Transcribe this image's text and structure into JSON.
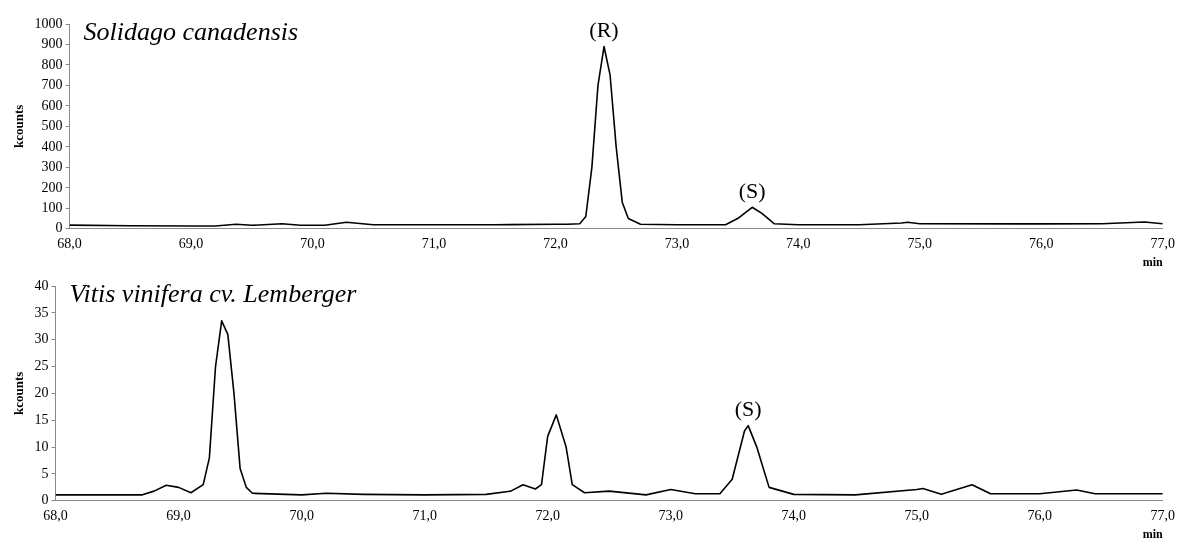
{
  "chart_data": [
    {
      "type": "line",
      "title": "Solidago canadensis",
      "xlabel": "min",
      "ylabel": "kcounts",
      "marker": "none",
      "grid": false,
      "legend": false,
      "xlim": [
        68,
        77
      ],
      "xticks": [
        {
          "value": 68,
          "label": "68,0"
        },
        {
          "value": 69,
          "label": "69,0"
        },
        {
          "value": 70,
          "label": "70,0"
        },
        {
          "value": 71,
          "label": "71,0"
        },
        {
          "value": 72,
          "label": "72,0"
        },
        {
          "value": 73,
          "label": "73,0"
        },
        {
          "value": 74,
          "label": "74,0"
        },
        {
          "value": 75,
          "label": "75,0"
        },
        {
          "value": 76,
          "label": "76,0"
        },
        {
          "value": 77,
          "label": "77,0"
        }
      ],
      "ylim": [
        0,
        1000
      ],
      "yticks": [
        0,
        100,
        200,
        300,
        400,
        500,
        600,
        700,
        800,
        900,
        1000
      ],
      "annotations": [
        {
          "text": "(R)",
          "x": 72.4,
          "y": 890
        },
        {
          "text": "(S)",
          "x": 73.62,
          "y": 105
        }
      ],
      "series": [
        {
          "color": "#000000",
          "x": [
            68,
            68.5,
            69,
            69.2,
            69.37,
            69.5,
            69.75,
            69.9,
            70.1,
            70.28,
            70.5,
            71,
            71.5,
            72,
            72.1,
            72.2,
            72.25,
            72.3,
            72.35,
            72.4,
            72.45,
            72.5,
            72.55,
            72.6,
            72.7,
            73,
            73.4,
            73.5,
            73.62,
            73.7,
            73.8,
            74,
            74.5,
            74.85,
            74.9,
            75,
            76,
            76.5,
            76.85,
            77
          ],
          "values": [
            18,
            15,
            14,
            14,
            22,
            17,
            25,
            17,
            17,
            32,
            20,
            20,
            20,
            22,
            22,
            25,
            60,
            300,
            700,
            890,
            750,
            400,
            130,
            50,
            22,
            20,
            20,
            50,
            105,
            75,
            25,
            20,
            20,
            28,
            32,
            25,
            24,
            25,
            33,
            25
          ]
        }
      ]
    },
    {
      "type": "line",
      "title": "Vitis vinifera cv. Lemberger",
      "xlabel": "min",
      "ylabel": "kcounts",
      "marker": "none",
      "grid": false,
      "legend": false,
      "xlim": [
        68,
        77
      ],
      "xticks": [
        {
          "value": 68,
          "label": "68,0"
        },
        {
          "value": 69,
          "label": "69,0"
        },
        {
          "value": 70,
          "label": "70,0"
        },
        {
          "value": 71,
          "label": "71,0"
        },
        {
          "value": 72,
          "label": "72,0"
        },
        {
          "value": 73,
          "label": "73,0"
        },
        {
          "value": 74,
          "label": "74,0"
        },
        {
          "value": 75,
          "label": "75,0"
        },
        {
          "value": 76,
          "label": "76,0"
        },
        {
          "value": 77,
          "label": "77,0"
        }
      ],
      "ylim": [
        0,
        40
      ],
      "yticks": [
        0,
        5,
        10,
        15,
        20,
        25,
        30,
        35,
        40
      ],
      "annotations": [
        {
          "text": "(S)",
          "x": 73.63,
          "y": 14
        }
      ],
      "series": [
        {
          "color": "#000000",
          "x": [
            68,
            68.5,
            68.7,
            68.8,
            68.9,
            69.0,
            69.1,
            69.2,
            69.25,
            69.3,
            69.35,
            69.4,
            69.45,
            69.5,
            69.55,
            69.6,
            70,
            70.2,
            70.5,
            71,
            71.5,
            71.7,
            71.8,
            71.9,
            71.95,
            72.0,
            72.07,
            72.15,
            72.2,
            72.3,
            72.5,
            72.8,
            73,
            73.2,
            73.4,
            73.5,
            73.6,
            73.63,
            73.7,
            73.8,
            74,
            74.5,
            75,
            75.05,
            75.2,
            75.45,
            75.6,
            76,
            76.3,
            76.45,
            77
          ],
          "values": [
            1.1,
            1.1,
            1.1,
            1.8,
            2.9,
            2.5,
            1.5,
            3,
            8,
            25,
            33.5,
            31,
            20,
            6,
            2.5,
            1.4,
            1.1,
            1.4,
            1.2,
            1.1,
            1.2,
            1.8,
            3,
            2.2,
            3,
            12,
            16,
            10,
            3,
            1.5,
            1.8,
            1.1,
            2.1,
            1.3,
            1.3,
            4,
            13,
            14,
            10,
            2.5,
            1.2,
            1.1,
            2.1,
            2.3,
            1.2,
            3,
            1.3,
            1.3,
            2,
            1.3,
            1.3
          ]
        }
      ]
    }
  ]
}
